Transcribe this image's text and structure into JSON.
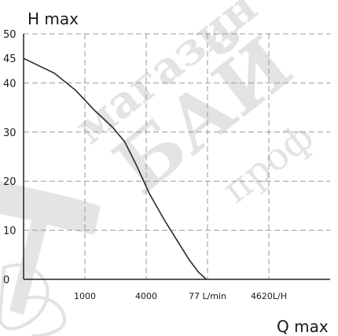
{
  "chart_data": {
    "type": "line",
    "ylabel": "H max",
    "xlabel": "Q max",
    "ylim": [
      0,
      50
    ],
    "xlim": [
      0,
      5
    ],
    "yticks": [
      {
        "value": 0,
        "label": "0"
      },
      {
        "value": 10,
        "label": "10"
      },
      {
        "value": 20,
        "label": "20"
      },
      {
        "value": 30,
        "label": "30"
      },
      {
        "value": 40,
        "label": "40"
      },
      {
        "value": 45,
        "label": "45"
      },
      {
        "value": 50,
        "label": "50"
      }
    ],
    "xticks": [
      {
        "value": 1,
        "label": "1000"
      },
      {
        "value": 2,
        "label": "4000"
      },
      {
        "value": 3,
        "label": "77 L/min"
      },
      {
        "value": 4,
        "label": "4620L/H"
      }
    ],
    "grid": true,
    "series": [
      {
        "x": [
          0,
          0.5,
          0.85,
          1.15,
          1.45,
          1.65,
          1.85,
          2.05,
          2.3,
          2.5,
          2.7,
          2.85,
          2.98
        ],
        "values": [
          45,
          42,
          38.5,
          34.5,
          31,
          28,
          23,
          17.5,
          12,
          8,
          4,
          1.5,
          0
        ]
      }
    ],
    "watermark": [
      "магазин",
      "БАЙ",
      "проф"
    ]
  }
}
